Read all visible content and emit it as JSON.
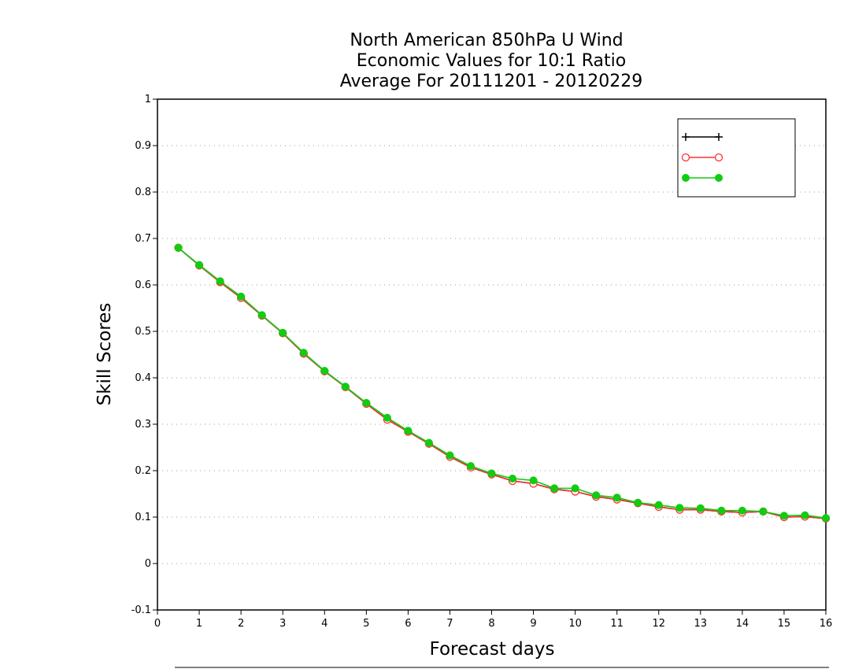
{
  "chart_data": {
    "type": "line",
    "title": [
      "North American 850hPa U Wind",
      "Economic Values for 10:1 Ratio",
      "Average For 20111201 - 20120229"
    ],
    "xlabel": "Forecast days",
    "ylabel": "Skill Scores",
    "xlim": [
      0,
      16
    ],
    "ylim": [
      -0.1,
      1
    ],
    "xticks": [
      0,
      1,
      2,
      3,
      4,
      5,
      6,
      7,
      8,
      9,
      10,
      11,
      12,
      13,
      14,
      15,
      16
    ],
    "yticks": [
      -0.1,
      0,
      0.1,
      0.2,
      0.3,
      0.4,
      0.5,
      0.6,
      0.7,
      0.8,
      0.9,
      1
    ],
    "ytick_labels": [
      "-0.1",
      "0",
      "0.1",
      "0.2",
      "0.3",
      "0.4",
      "0.5",
      "0.6",
      "0.7",
      "0.8",
      "0.9",
      "1"
    ],
    "grid": "horizontal dotted",
    "legend_position": "top-right",
    "x": [
      0.5,
      1,
      1.5,
      2,
      2.5,
      3,
      3.5,
      4,
      4.5,
      5,
      5.5,
      6,
      6.5,
      7,
      7.5,
      8,
      8.5,
      9,
      9.5,
      10,
      10.5,
      11,
      11.5,
      12,
      12.5,
      13,
      13.5,
      14,
      14.5,
      15,
      15.5,
      16
    ],
    "series": [
      {
        "name": "",
        "color": "#000000",
        "marker": "plus",
        "values": [
          0.68,
          0.642,
          0.606,
          0.572,
          0.534,
          0.496,
          0.452,
          0.414,
          0.38,
          0.344,
          0.31,
          0.284,
          0.258,
          0.23,
          0.207,
          0.192,
          0.178,
          0.172,
          0.16,
          0.155,
          0.144,
          0.138,
          0.13,
          0.122,
          0.116,
          0.116,
          0.112,
          0.11,
          0.112,
          0.1,
          0.101,
          0.097
        ]
      },
      {
        "name": "",
        "color": "#ff3030",
        "marker": "open-circle",
        "values": [
          0.68,
          0.642,
          0.606,
          0.572,
          0.534,
          0.496,
          0.452,
          0.414,
          0.38,
          0.344,
          0.31,
          0.284,
          0.258,
          0.23,
          0.207,
          0.192,
          0.178,
          0.172,
          0.16,
          0.155,
          0.144,
          0.138,
          0.13,
          0.122,
          0.116,
          0.116,
          0.112,
          0.11,
          0.112,
          0.1,
          0.101,
          0.097
        ]
      },
      {
        "name": "",
        "color": "#11cc11",
        "marker": "filled-circle",
        "values": [
          0.68,
          0.643,
          0.608,
          0.575,
          0.535,
          0.497,
          0.454,
          0.415,
          0.381,
          0.346,
          0.314,
          0.286,
          0.26,
          0.233,
          0.21,
          0.194,
          0.183,
          0.179,
          0.162,
          0.162,
          0.147,
          0.142,
          0.131,
          0.126,
          0.12,
          0.119,
          0.114,
          0.114,
          0.112,
          0.103,
          0.104,
          0.098
        ]
      }
    ]
  }
}
